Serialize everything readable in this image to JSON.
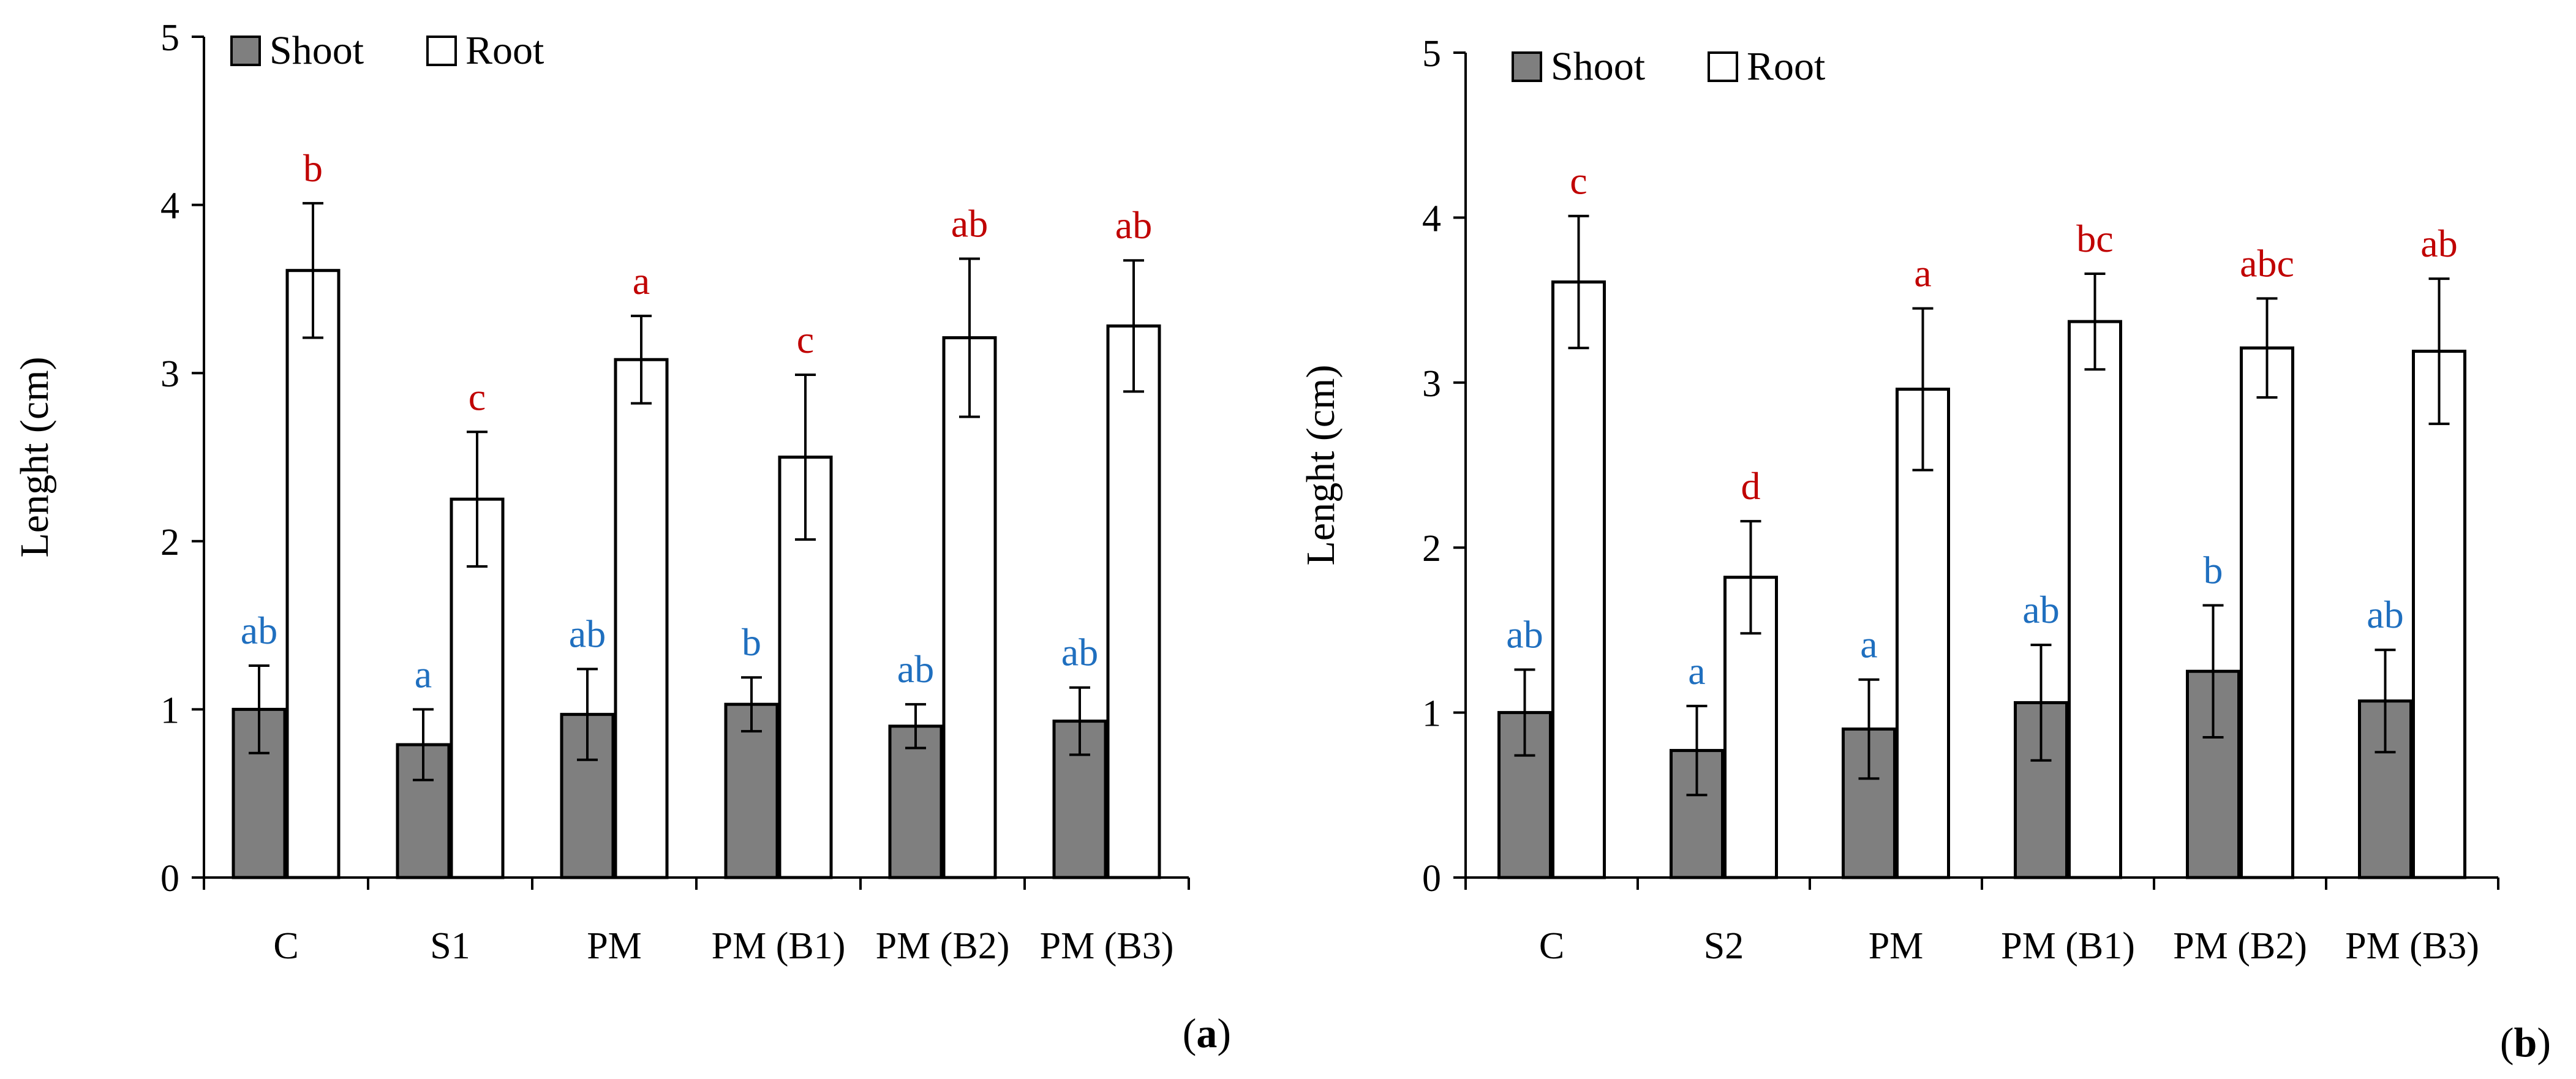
{
  "colors": {
    "shoot_fill": "#7f7f7f",
    "root_fill": "#ffffff",
    "shoot_letters": "#1f6fbf",
    "root_letters": "#c00000",
    "axis": "#000000"
  },
  "chart_data": [
    {
      "type": "bar",
      "panel_label": {
        "open": "(",
        "letter": "a",
        "close": ")"
      },
      "title": "",
      "xlabel": "",
      "ylabel": "Lenght (cm)",
      "ylim": [
        0,
        5
      ],
      "yticks": [
        "0",
        "1",
        "2",
        "3",
        "4",
        "5"
      ],
      "legend_position": "top-left",
      "categories": [
        "C",
        "S1",
        "PM",
        "PM (B1)",
        "PM (B2)",
        "PM (B3)"
      ],
      "series": [
        {
          "name": "Shoot",
          "values": [
            1.0,
            0.79,
            0.97,
            1.03,
            0.9,
            0.93
          ],
          "errors": [
            0.26,
            0.21,
            0.27,
            0.16,
            0.13,
            0.2
          ],
          "letters": [
            "ab",
            "a",
            "ab",
            "b",
            "ab",
            "ab"
          ]
        },
        {
          "name": "Root",
          "values": [
            3.61,
            2.25,
            3.08,
            2.5,
            3.21,
            3.28
          ],
          "errors": [
            0.4,
            0.4,
            0.26,
            0.49,
            0.47,
            0.39
          ],
          "letters": [
            "b",
            "c",
            "a",
            "c",
            "ab",
            "ab"
          ]
        }
      ]
    },
    {
      "type": "bar",
      "panel_label": {
        "open": "(",
        "letter": "b",
        "close": ")"
      },
      "title": "",
      "xlabel": "",
      "ylabel": "Lenght (cm)",
      "ylim": [
        0,
        5
      ],
      "yticks": [
        "0",
        "1",
        "2",
        "3",
        "4",
        "5"
      ],
      "legend_position": "top-left",
      "categories": [
        "C",
        "S2",
        "PM",
        "PM (B1)",
        "PM (B2)",
        "PM (B3)"
      ],
      "series": [
        {
          "name": "Shoot",
          "values": [
            1.0,
            0.77,
            0.9,
            1.06,
            1.25,
            1.07
          ],
          "errors": [
            0.26,
            0.27,
            0.3,
            0.35,
            0.4,
            0.31
          ],
          "letters": [
            "ab",
            "a",
            "a",
            "ab",
            "b",
            "ab"
          ]
        },
        {
          "name": "Root",
          "values": [
            3.61,
            1.82,
            2.96,
            3.37,
            3.21,
            3.19
          ],
          "errors": [
            0.4,
            0.34,
            0.49,
            0.29,
            0.3,
            0.44
          ],
          "letters": [
            "c",
            "d",
            "a",
            "bc",
            "abc",
            "ab"
          ]
        }
      ]
    }
  ]
}
